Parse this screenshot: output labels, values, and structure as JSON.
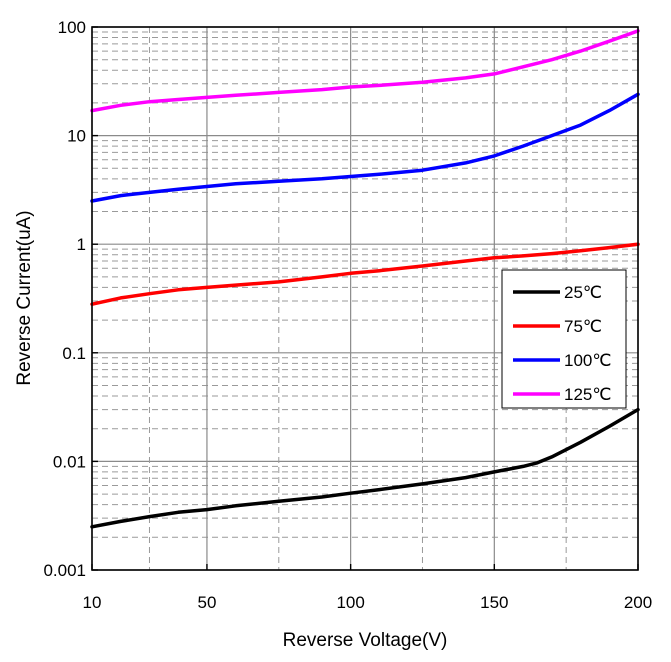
{
  "chart_data": {
    "type": "line",
    "xlabel": "Reverse Voltage(V)",
    "ylabel": "Reverse Current(uA)",
    "xscale": "linear",
    "yscale": "log",
    "xlim": [
      10,
      200
    ],
    "ylim": [
      0.001,
      100
    ],
    "x_ticks": [
      10,
      50,
      100,
      150,
      200
    ],
    "x_tick_labels": [
      "10",
      "50",
      "100",
      "150",
      "200"
    ],
    "x_grid_dashed": [
      30,
      75,
      125,
      175
    ],
    "y_ticks": [
      0.001,
      0.01,
      0.1,
      1,
      10,
      100
    ],
    "y_tick_labels": [
      "0.001",
      "0.01",
      "0.1",
      "1",
      "10",
      "100"
    ],
    "grid": true,
    "legend_position": "right",
    "series": [
      {
        "name": "25℃",
        "color": "#000000",
        "x": [
          10,
          20,
          30,
          40,
          50,
          60,
          75,
          90,
          100,
          110,
          125,
          140,
          150,
          160,
          165,
          170,
          180,
          190,
          200
        ],
        "y": [
          0.0025,
          0.0028,
          0.0031,
          0.0034,
          0.0036,
          0.0039,
          0.0043,
          0.0047,
          0.0051,
          0.0055,
          0.0062,
          0.0071,
          0.008,
          0.009,
          0.0097,
          0.011,
          0.015,
          0.021,
          0.03
        ]
      },
      {
        "name": "75℃",
        "color": "#ff0000",
        "x": [
          10,
          20,
          30,
          40,
          50,
          60,
          75,
          90,
          100,
          110,
          125,
          140,
          150,
          160,
          170,
          180,
          190,
          200
        ],
        "y": [
          0.28,
          0.32,
          0.35,
          0.38,
          0.4,
          0.42,
          0.45,
          0.5,
          0.54,
          0.57,
          0.63,
          0.7,
          0.75,
          0.78,
          0.82,
          0.87,
          0.93,
          1.0
        ]
      },
      {
        "name": "100℃",
        "color": "#0000ff",
        "x": [
          10,
          20,
          30,
          40,
          50,
          60,
          75,
          90,
          100,
          110,
          125,
          140,
          150,
          160,
          170,
          180,
          190,
          200
        ],
        "y": [
          2.5,
          2.8,
          3.0,
          3.2,
          3.4,
          3.6,
          3.8,
          4.0,
          4.2,
          4.4,
          4.8,
          5.6,
          6.5,
          8.0,
          10.0,
          12.5,
          17.0,
          24.0
        ]
      },
      {
        "name": "125℃",
        "color": "#ff00ff",
        "x": [
          10,
          20,
          30,
          40,
          50,
          60,
          75,
          90,
          100,
          110,
          125,
          140,
          150,
          160,
          170,
          180,
          190,
          200
        ],
        "y": [
          17,
          19,
          20.5,
          21.5,
          22.5,
          23.5,
          25,
          26.5,
          28,
          29,
          31,
          34,
          37,
          43,
          50,
          60,
          74,
          92
        ]
      }
    ]
  }
}
